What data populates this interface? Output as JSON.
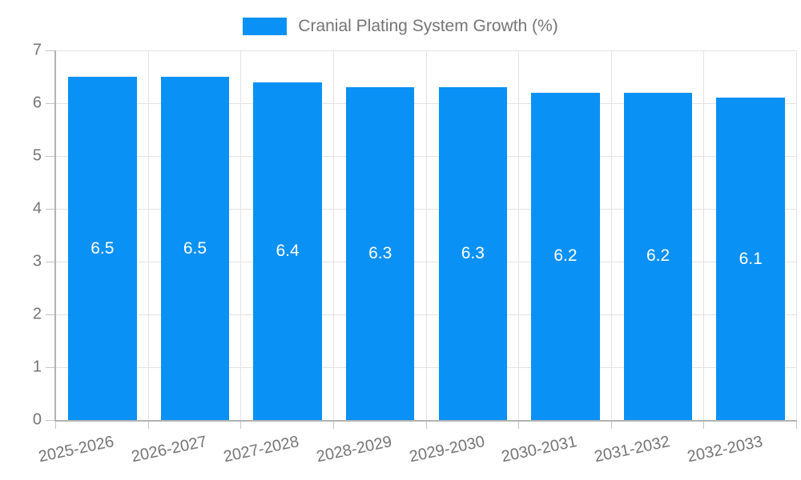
{
  "legend": {
    "label": "Cranial Plating System Growth (%)",
    "swatch_color": "#0991f5"
  },
  "chart_data": {
    "type": "bar",
    "title": "Cranial Plating System Growth (%)",
    "categories": [
      "2025-2026",
      "2026-2027",
      "2027-2028",
      "2028-2029",
      "2029-2030",
      "2030-2031",
      "2031-2032",
      "2032-2033"
    ],
    "values": [
      6.5,
      6.5,
      6.4,
      6.3,
      6.3,
      6.2,
      6.2,
      6.1
    ],
    "xlabel": "",
    "ylabel": "",
    "ylim": [
      0,
      7
    ],
    "yticks": [
      0,
      1,
      2,
      3,
      4,
      5,
      6,
      7
    ],
    "grid": true,
    "legend_position": "top",
    "bar_color": "#0991f5",
    "value_label_color": "#ffffff"
  },
  "colors": {
    "axis": "#b3b3b3",
    "gridline": "#e3e3e3",
    "tick": "#c4c4c4",
    "tick_text": "#757575",
    "background": "#ffffff"
  }
}
